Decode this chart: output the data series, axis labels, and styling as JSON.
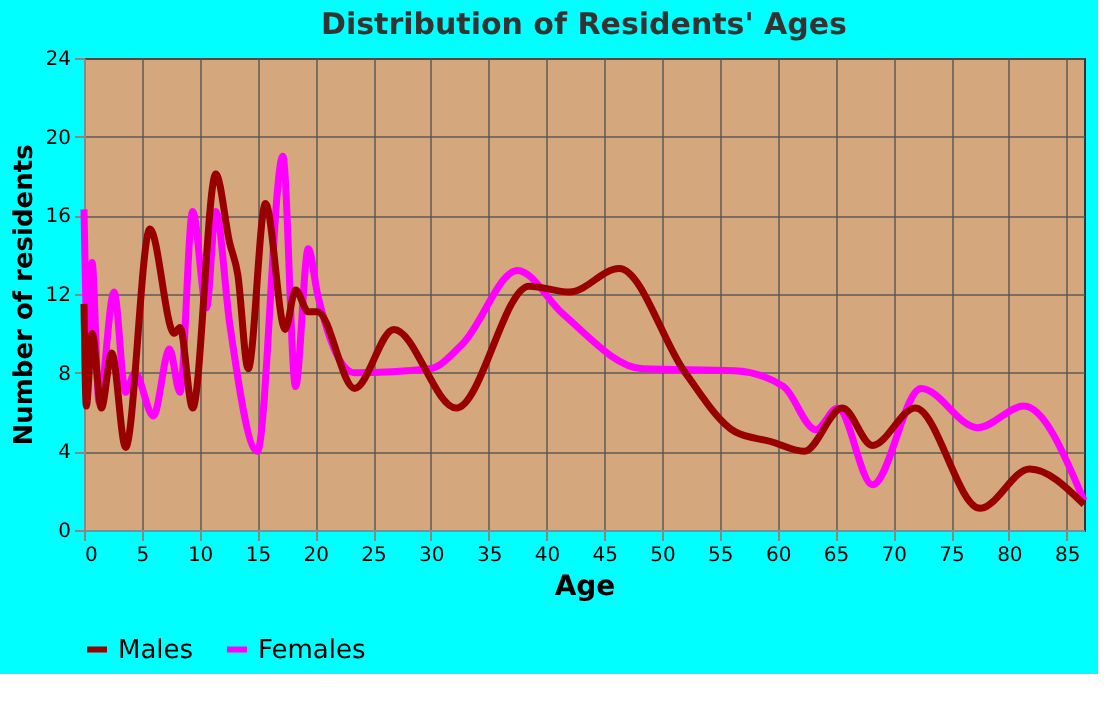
{
  "chart_data": {
    "type": "line",
    "title": "Distribution of Residents' Ages",
    "xlabel": "Age",
    "ylabel": "Number of residents",
    "xlim": [
      0,
      86.5
    ],
    "xticks": [
      0,
      5,
      10,
      15,
      20,
      25,
      30,
      35,
      40,
      45,
      50,
      55,
      60,
      65,
      70,
      75,
      80,
      85
    ],
    "ylim": [
      0,
      24
    ],
    "yticks": [
      0,
      4,
      8,
      12,
      16,
      20,
      24
    ],
    "grid": true,
    "legend": "bottom",
    "series": [
      {
        "name": "Males",
        "color": "#990000",
        "x": [
          0,
          0.2,
          0.7,
          1.5,
          2.4,
          3.6,
          5.7,
          7.8,
          8.3,
          9.4,
          11.4,
          12.6,
          13.3,
          14.2,
          15.7,
          17.4,
          18.3,
          19.4,
          20.2,
          23.4,
          26.8,
          32.2,
          38.5,
          42,
          46.3,
          52,
          56.3,
          59.4,
          62.3,
          65.6,
          68.2,
          71.9,
          77.5,
          81.8,
          86.5
        ],
        "values": [
          11.5,
          6.3,
          10,
          6.2,
          9,
          4.2,
          15.3,
          10,
          10.3,
          6.2,
          18.1,
          14.6,
          13,
          8.2,
          16.6,
          10.2,
          12.2,
          11.1,
          11.1,
          7.2,
          10.2,
          6.2,
          12.4,
          12.1,
          13.3,
          8,
          5,
          4.5,
          4,
          6.2,
          4.3,
          6.2,
          1.1,
          3.1,
          1.3
        ]
      },
      {
        "name": "Females",
        "color": "#ff00ff",
        "x": [
          0,
          0.4,
          0.7,
          1.3,
          2.6,
          3.6,
          4.4,
          6,
          7.4,
          8.3,
          9.4,
          10.6,
          11.4,
          12.6,
          15,
          17.2,
          18.3,
          19.4,
          20.2,
          23.4,
          29.9,
          32.8,
          37.5,
          41.4,
          48.3,
          56.3,
          60.5,
          63.3,
          65.2,
          68.2,
          72.4,
          77.3,
          81.3,
          86.5
        ],
        "values": [
          16.3,
          8,
          13.6,
          6.5,
          12.1,
          7,
          8,
          5.8,
          9.2,
          7,
          16.2,
          11.3,
          16.2,
          10.5,
          4,
          19,
          7.3,
          14.3,
          12,
          8,
          8.2,
          9.5,
          13.2,
          11,
          8.2,
          8.1,
          7.3,
          5.1,
          6.2,
          2.3,
          7.2,
          5.2,
          6.3,
          1.5
        ]
      }
    ]
  }
}
